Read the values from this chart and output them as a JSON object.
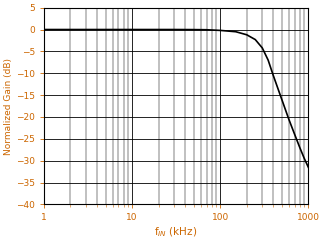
{
  "title": "",
  "xlabel": "f$_{IN}$ (kHz)",
  "ylabel": "Normalized Gain (dB)",
  "xlabel_color": "#cc6600",
  "ylabel_color": "#cc6600",
  "tick_color": "#cc6600",
  "xlim_log": [
    1,
    1000
  ],
  "ylim": [
    -40,
    5
  ],
  "yticks": [
    5,
    0,
    -5,
    -10,
    -15,
    -20,
    -25,
    -30,
    -35,
    -40
  ],
  "line_color": "#000000",
  "background_color": "#ffffff",
  "grid_color": "#000000",
  "curve_points_x": [
    1,
    2,
    3,
    5,
    7,
    10,
    20,
    30,
    50,
    70,
    100,
    150,
    200,
    250,
    300,
    350,
    400,
    500,
    600,
    700,
    800,
    900,
    1000
  ],
  "curve_points_y": [
    0.0,
    0.0,
    0.0,
    0.0,
    0.0,
    0.0,
    0.0,
    0.0,
    -0.02,
    -0.05,
    -0.2,
    -0.5,
    -1.2,
    -2.3,
    -4.2,
    -7.0,
    -10.5,
    -16.0,
    -20.5,
    -24.0,
    -27.0,
    -29.5,
    -31.5
  ]
}
